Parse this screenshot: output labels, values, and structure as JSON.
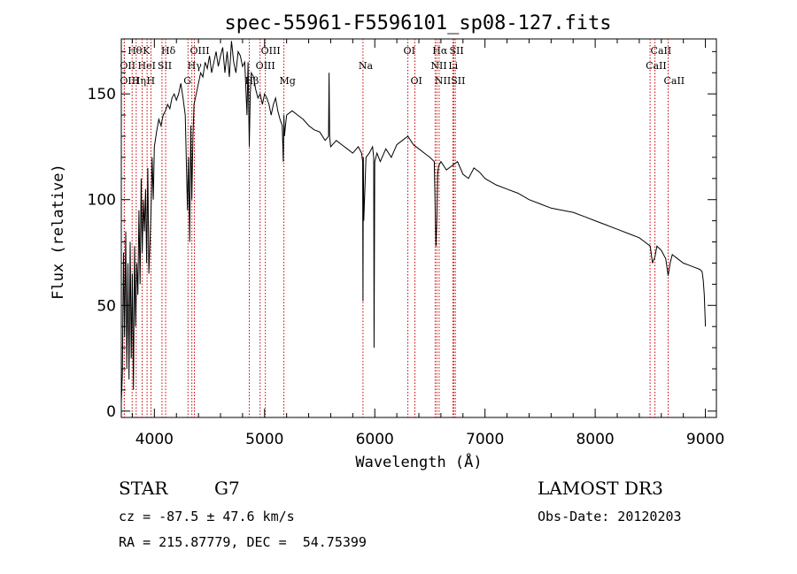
{
  "chart_data": {
    "type": "line",
    "title": "spec-55961-F5596101_sp08-127.fits",
    "xlabel": "Wavelength (Å)",
    "ylabel": "Flux (relative)",
    "xlim": [
      3700,
      9100
    ],
    "ylim": [
      -3,
      176
    ],
    "xticks": [
      4000,
      5000,
      6000,
      7000,
      8000,
      9000
    ],
    "yticks": [
      0,
      50,
      100,
      150
    ],
    "series": [
      {
        "name": "flux",
        "x": [
          3700,
          3710,
          3720,
          3730,
          3740,
          3750,
          3760,
          3770,
          3780,
          3790,
          3800,
          3810,
          3820,
          3830,
          3840,
          3850,
          3860,
          3870,
          3880,
          3890,
          3900,
          3910,
          3920,
          3930,
          3940,
          3950,
          3960,
          3970,
          3980,
          3990,
          4000,
          4020,
          4040,
          4060,
          4080,
          4100,
          4120,
          4140,
          4160,
          4180,
          4200,
          4220,
          4240,
          4260,
          4280,
          4300,
          4310,
          4320,
          4330,
          4340,
          4350,
          4360,
          4380,
          4400,
          4420,
          4440,
          4460,
          4480,
          4500,
          4520,
          4540,
          4560,
          4580,
          4600,
          4620,
          4640,
          4660,
          4680,
          4700,
          4720,
          4740,
          4760,
          4780,
          4800,
          4820,
          4840,
          4850,
          4861,
          4870,
          4880,
          4900,
          4920,
          4940,
          4960,
          4980,
          5000,
          5020,
          5040,
          5060,
          5080,
          5100,
          5120,
          5140,
          5160,
          5170,
          5175,
          5180,
          5190,
          5200,
          5250,
          5300,
          5350,
          5400,
          5450,
          5500,
          5550,
          5580,
          5585,
          5590,
          5600,
          5650,
          5700,
          5750,
          5800,
          5850,
          5880,
          5890,
          5893,
          5896,
          5900,
          5920,
          5950,
          5980,
          5990,
          5993,
          6000,
          6020,
          6050,
          6100,
          6150,
          6200,
          6250,
          6300,
          6350,
          6400,
          6450,
          6500,
          6540,
          6555,
          6563,
          6570,
          6580,
          6600,
          6650,
          6700,
          6750,
          6800,
          6850,
          6900,
          6950,
          7000,
          7100,
          7200,
          7300,
          7400,
          7500,
          7600,
          7700,
          7800,
          7900,
          8000,
          8100,
          8200,
          8300,
          8400,
          8450,
          8500,
          8520,
          8542,
          8560,
          8600,
          8640,
          8662,
          8680,
          8700,
          8750,
          8800,
          8850,
          8900,
          8950,
          8970,
          8980,
          8990,
          9000
        ],
        "values": [
          4,
          18,
          75,
          35,
          85,
          20,
          70,
          15,
          80,
          25,
          65,
          10,
          78,
          40,
          70,
          55,
          95,
          60,
          110,
          75,
          100,
          85,
          105,
          70,
          115,
          65,
          80,
          95,
          120,
          100,
          125,
          132,
          138,
          135,
          140,
          142,
          145,
          143,
          148,
          150,
          147,
          150,
          155,
          148,
          140,
          95,
          120,
          80,
          135,
          100,
          130,
          145,
          150,
          155,
          160,
          158,
          165,
          162,
          168,
          160,
          165,
          170,
          163,
          168,
          172,
          160,
          170,
          158,
          175,
          165,
          160,
          170,
          168,
          163,
          165,
          140,
          165,
          125,
          150,
          160,
          158,
          152,
          148,
          150,
          145,
          150,
          148,
          145,
          140,
          145,
          148,
          142,
          138,
          135,
          118,
          140,
          130,
          135,
          140,
          142,
          140,
          138,
          135,
          133,
          132,
          128,
          130,
          160,
          130,
          125,
          128,
          126,
          124,
          122,
          125,
          122,
          118,
          52,
          120,
          90,
          120,
          122,
          125,
          120,
          30,
          118,
          122,
          118,
          124,
          120,
          126,
          128,
          130,
          126,
          124,
          122,
          120,
          118,
          78,
          90,
          112,
          116,
          118,
          114,
          116,
          118,
          112,
          110,
          115,
          113,
          110,
          107,
          105,
          103,
          100,
          98,
          96,
          95,
          94,
          92,
          90,
          88,
          86,
          84,
          82,
          80,
          78,
          70,
          73,
          78,
          76,
          72,
          64,
          70,
          74,
          72,
          70,
          69,
          68,
          67,
          66,
          62,
          55,
          40
        ]
      }
    ],
    "lines": [
      {
        "label": "Hθ",
        "wl": 3798,
        "row": 1
      },
      {
        "label": "OII",
        "wl": 3727,
        "row": 2
      },
      {
        "label": "OIII",
        "wl": 3727,
        "row": 3
      },
      {
        "label": "K",
        "wl": 3934,
        "row": 1
      },
      {
        "label": "HeI",
        "wl": 3889,
        "row": 2
      },
      {
        "label": "Hη",
        "wl": 3835,
        "row": 3
      },
      {
        "label": "Hδ",
        "wl": 4102,
        "row": 1
      },
      {
        "label": "SII",
        "wl": 4069,
        "row": 2
      },
      {
        "label": "H",
        "wl": 3969,
        "row": 3
      },
      {
        "label": "OIII",
        "wl": 4363,
        "row": 1
      },
      {
        "label": "Hγ",
        "wl": 4340,
        "row": 2
      },
      {
        "label": "G",
        "wl": 4305,
        "row": 3
      },
      {
        "label": "OIII",
        "wl": 5007,
        "row": 1
      },
      {
        "label": "OIII",
        "wl": 4959,
        "row": 2
      },
      {
        "label": "Hβ",
        "wl": 4861,
        "row": 3
      },
      {
        "label": "Mg",
        "wl": 5175,
        "row": 3
      },
      {
        "label": "Na",
        "wl": 5893,
        "row": 2
      },
      {
        "label": "OI",
        "wl": 6300,
        "row": 1
      },
      {
        "label": "OI",
        "wl": 6364,
        "row": 3
      },
      {
        "label": "Hα",
        "wl": 6563,
        "row": 1
      },
      {
        "label": "NII",
        "wl": 6548,
        "row": 2
      },
      {
        "label": "NII",
        "wl": 6584,
        "row": 3
      },
      {
        "label": "SII",
        "wl": 6717,
        "row": 1
      },
      {
        "label": "Li",
        "wl": 6708,
        "row": 2
      },
      {
        "label": "SII",
        "wl": 6731,
        "row": 3
      },
      {
        "label": "CaII",
        "wl": 8542,
        "row": 1
      },
      {
        "label": "CaII",
        "wl": 8498,
        "row": 2
      },
      {
        "label": "CaII",
        "wl": 8662,
        "row": 3
      }
    ]
  },
  "info": {
    "object_type": "STAR",
    "subclass": "G7",
    "survey": "LAMOST DR3",
    "cz": "cz = -87.5 ± 47.6 km/s",
    "obs_date": "Obs-Date: 20120203",
    "coords": "RA = 215.87779, DEC =  54.75399"
  },
  "colors": {
    "line": "#000000",
    "marker": "#cc0000"
  }
}
